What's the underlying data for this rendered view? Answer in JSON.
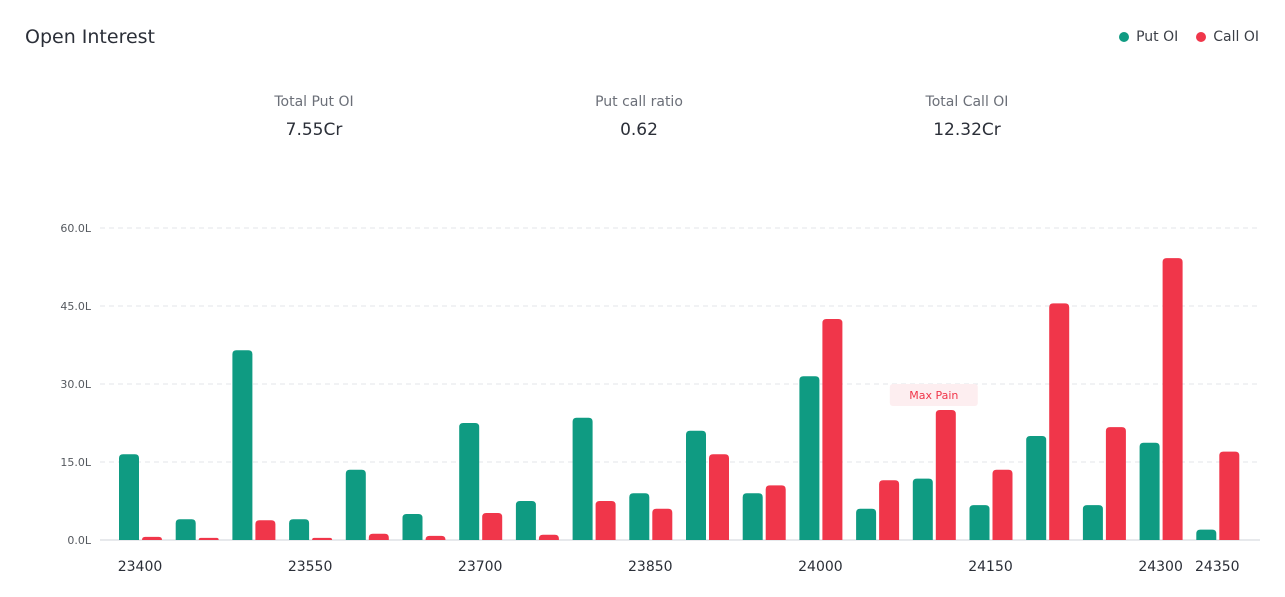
{
  "header": {
    "title": "Open Interest"
  },
  "legend": [
    {
      "label": "Put OI",
      "color": "#0f9b82"
    },
    {
      "label": "Call OI",
      "color": "#f0364a"
    }
  ],
  "stats": {
    "put": {
      "label": "Total Put OI",
      "value": "7.55Cr"
    },
    "pcr": {
      "label": "Put call ratio",
      "value": "0.62"
    },
    "call": {
      "label": "Total Call OI",
      "value": "12.32Cr"
    }
  },
  "chart_data": {
    "type": "bar",
    "title": "Open Interest",
    "xlabel": "",
    "ylabel": "",
    "ylim": [
      0,
      60
    ],
    "y_ticks": [
      "0.0L",
      "15.0L",
      "30.0L",
      "45.0L",
      "60.0L"
    ],
    "y_tick_values": [
      0,
      15,
      30,
      45,
      60
    ],
    "grid": true,
    "legend_position": "top-right",
    "categories": [
      "23400",
      "23450",
      "23500",
      "23550",
      "23600",
      "23650",
      "23700",
      "23750",
      "23800",
      "23850",
      "23900",
      "23950",
      "24000",
      "24050",
      "24100",
      "24150",
      "24200",
      "24250",
      "24300",
      "24350"
    ],
    "x_tick_labels": [
      "23400",
      "",
      "",
      "23550",
      "",
      "",
      "23700",
      "",
      "",
      "23850",
      "",
      "",
      "24000",
      "",
      "",
      "24150",
      "",
      "",
      "24300",
      "24350"
    ],
    "series": [
      {
        "name": "Put OI",
        "color": "#0f9b82",
        "values": [
          16.5,
          4,
          36.5,
          4,
          13.5,
          5,
          22.5,
          7.5,
          23.5,
          9,
          21,
          9,
          31.5,
          6,
          11.8,
          6.7,
          20,
          6.7,
          18.7,
          2
        ]
      },
      {
        "name": "Call OI",
        "color": "#f0364a",
        "values": [
          0.6,
          0.4,
          3.8,
          0.4,
          1.2,
          0.8,
          5.2,
          1,
          7.5,
          6,
          16.5,
          10.5,
          42.5,
          11.5,
          25,
          13.5,
          45.5,
          21.7,
          54.2,
          17
        ]
      }
    ],
    "annotations": [
      {
        "label": "Max Pain",
        "category": "24100"
      }
    ]
  }
}
